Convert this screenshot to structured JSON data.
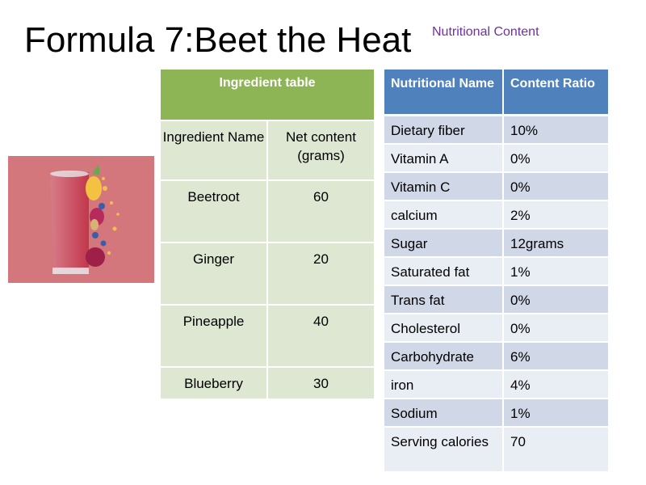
{
  "slide": {
    "title": "Formula 7:Beet the Heat",
    "subtitle": "Nutritional Content"
  },
  "ingredient_table": {
    "caption": "Ingredient table",
    "col_name": "Ingredient Name",
    "col_amount": "Net content (grams)",
    "rows": [
      {
        "name": "Beetroot",
        "amount": "60"
      },
      {
        "name": "Ginger",
        "amount": "20"
      },
      {
        "name": "Pineapple",
        "amount": "40"
      },
      {
        "name": "Blueberry",
        "amount": "30"
      }
    ]
  },
  "nutrition_table": {
    "col_name": "Nutritional Name",
    "col_ratio": "Content Ratio",
    "rows": [
      {
        "name": "Dietary fiber",
        "ratio": "10%"
      },
      {
        "name": "Vitamin A",
        "ratio": "0%"
      },
      {
        "name": "Vitamin C",
        "ratio": "0%"
      },
      {
        "name": "calcium",
        "ratio": "2%"
      },
      {
        "name": "Sugar",
        "ratio": "12grams"
      },
      {
        "name": "Saturated fat",
        "ratio": "1%"
      },
      {
        "name": "Trans fat",
        "ratio": "0%"
      },
      {
        "name": "Cholesterol",
        "ratio": "0%"
      },
      {
        "name": "Carbohydrate",
        "ratio": "6%"
      },
      {
        "name": "iron",
        "ratio": "4%"
      },
      {
        "name": "Sodium",
        "ratio": "1%"
      },
      {
        "name": "Serving calories",
        "ratio": "70"
      }
    ]
  },
  "colors": {
    "title_text": "#000000",
    "subtitle_text": "#7030a0",
    "ingredient_header": "#8db556",
    "ingredient_cell": "#dde7d2",
    "nutrition_header": "#4f81bd",
    "nutrition_row_dark": "#d0d8e8",
    "nutrition_row_light": "#e9edf4",
    "photo_background": "#d4777c"
  },
  "image": {
    "subject": "smoothie-glass-icon"
  }
}
